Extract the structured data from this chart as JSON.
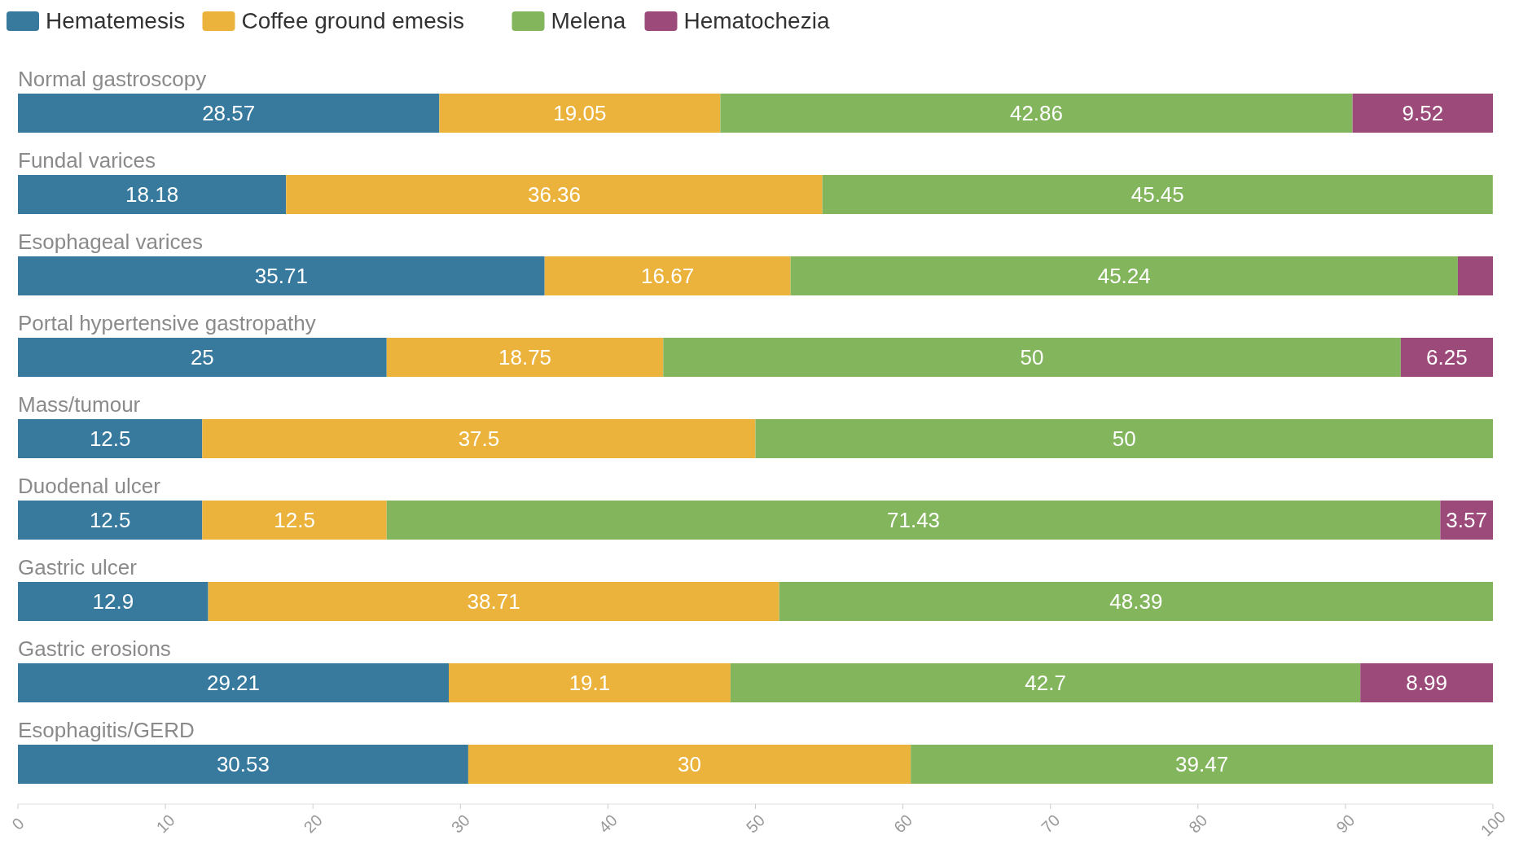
{
  "chart_data": {
    "type": "bar",
    "orientation": "horizontal",
    "stacked": true,
    "legend": "top left",
    "grid": false,
    "categories": [
      "Normal gastroscopy",
      "Fundal varices",
      "Esophageal varices",
      "Portal hypertensive gastropathy",
      "Mass/tumour",
      "Duodenal ulcer",
      "Gastric ulcer",
      "Gastric erosions",
      "Esophagitis/GERD"
    ],
    "xlim": [
      0,
      100
    ],
    "xticks": [
      0,
      10,
      20,
      30,
      40,
      50,
      60,
      70,
      80,
      90,
      100
    ],
    "series": [
      {
        "name": "Hematemesis",
        "color": "#377a9e",
        "values": [
          28.57,
          18.18,
          35.71,
          25,
          12.5,
          12.5,
          12.9,
          29.21,
          30.53
        ],
        "value_labels": [
          "28.57",
          "18.18",
          "35.71",
          "25",
          "12.5",
          "12.5",
          "12.9",
          "29.21",
          "30.53"
        ]
      },
      {
        "name": "Coffee ground emesis",
        "color": "#ecb33c",
        "values": [
          19.05,
          36.36,
          16.67,
          18.75,
          37.5,
          12.5,
          38.71,
          19.1,
          30
        ],
        "value_labels": [
          "19.05",
          "36.36",
          "16.67",
          "18.75",
          "37.5",
          "12.5",
          "38.71",
          "19.1",
          "30"
        ]
      },
      {
        "name": "Melena",
        "color": "#82b55c",
        "values": [
          42.86,
          45.45,
          45.24,
          50,
          50,
          71.43,
          48.39,
          42.7,
          39.47
        ],
        "value_labels": [
          "42.86",
          "45.45",
          "45.24",
          "50",
          "50",
          "71.43",
          "48.39",
          "42.7",
          "39.47"
        ]
      },
      {
        "name": "Hematochezia",
        "color": "#9c4a7a",
        "values": [
          9.52,
          null,
          2.38,
          6.25,
          null,
          3.57,
          null,
          8.99,
          null
        ],
        "value_labels": [
          "9.52",
          null,
          null,
          "6.25",
          null,
          "3.57",
          null,
          "8.99",
          null
        ]
      }
    ]
  }
}
